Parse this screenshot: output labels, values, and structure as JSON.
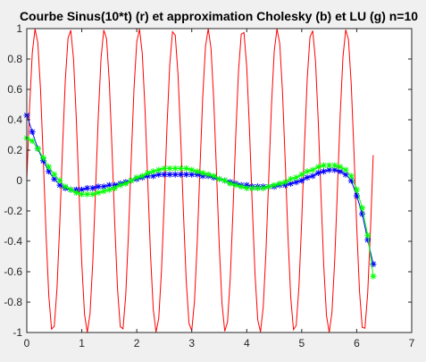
{
  "chart_data": {
    "type": "line",
    "title": "Courbe Sinus(10*t) (r) et approximation Cholesky (b) et LU (g) n=10",
    "xlabel": "",
    "ylabel": "",
    "xlim": [
      0,
      7
    ],
    "ylim": [
      -1,
      1
    ],
    "xticks": [
      0,
      1,
      2,
      3,
      4,
      5,
      6,
      7
    ],
    "yticks": [
      -1,
      -0.8,
      -0.6,
      -0.4,
      -0.2,
      0,
      0.2,
      0.4,
      0.6,
      0.8,
      1
    ],
    "xtick_labels": [
      "0",
      "1",
      "2",
      "3",
      "4",
      "5",
      "6",
      "7"
    ],
    "ytick_labels": [
      "-1",
      "-0.8",
      "-0.6",
      "-0.4",
      "-0.2",
      "0",
      "0.2",
      "0.4",
      "0.6",
      "0.8",
      "1"
    ],
    "grid": false,
    "series": [
      {
        "color": "#ff0000",
        "marker": "none",
        "function": "sin(10*t)",
        "x_range": [
          0,
          6.3
        ]
      },
      {
        "color": "#0000ff",
        "marker": "*",
        "x": [
          0.0,
          0.1,
          0.2,
          0.3,
          0.4,
          0.5,
          0.6,
          0.7,
          0.8,
          0.9,
          1.0,
          1.1,
          1.2,
          1.3,
          1.4,
          1.5,
          1.6,
          1.7,
          1.8,
          1.9,
          2.0,
          2.1,
          2.2,
          2.3,
          2.4,
          2.5,
          2.6,
          2.7,
          2.8,
          2.9,
          3.0,
          3.1,
          3.2,
          3.3,
          3.4,
          3.5,
          3.6,
          3.7,
          3.8,
          3.9,
          4.0,
          4.1,
          4.2,
          4.3,
          4.4,
          4.5,
          4.6,
          4.7,
          4.8,
          4.9,
          5.0,
          5.1,
          5.2,
          5.3,
          5.4,
          5.5,
          5.6,
          5.7,
          5.8,
          5.9,
          6.0,
          6.1,
          6.2,
          6.3
        ],
        "y": [
          0.43,
          0.32,
          0.21,
          0.13,
          0.06,
          0.01,
          -0.03,
          -0.05,
          -0.06,
          -0.06,
          -0.06,
          -0.05,
          -0.05,
          -0.04,
          -0.04,
          -0.03,
          -0.03,
          -0.02,
          -0.01,
          0.0,
          0.01,
          0.02,
          0.03,
          0.03,
          0.04,
          0.04,
          0.04,
          0.04,
          0.04,
          0.04,
          0.04,
          0.04,
          0.03,
          0.03,
          0.02,
          0.01,
          0.0,
          -0.01,
          -0.02,
          -0.03,
          -0.03,
          -0.04,
          -0.04,
          -0.04,
          -0.04,
          -0.04,
          -0.03,
          -0.03,
          -0.02,
          -0.01,
          0.0,
          0.02,
          0.03,
          0.05,
          0.06,
          0.07,
          0.07,
          0.06,
          0.04,
          0.0,
          -0.1,
          -0.22,
          -0.39,
          -0.55
        ]
      },
      {
        "color": "#00ff00",
        "marker": "*",
        "x": [
          0.0,
          0.1,
          0.2,
          0.3,
          0.4,
          0.5,
          0.6,
          0.7,
          0.8,
          0.9,
          1.0,
          1.1,
          1.2,
          1.3,
          1.4,
          1.5,
          1.6,
          1.7,
          1.8,
          1.9,
          2.0,
          2.1,
          2.2,
          2.3,
          2.4,
          2.5,
          2.6,
          2.7,
          2.8,
          2.9,
          3.0,
          3.1,
          3.2,
          3.3,
          3.4,
          3.5,
          3.6,
          3.7,
          3.8,
          3.9,
          4.0,
          4.1,
          4.2,
          4.3,
          4.4,
          4.5,
          4.6,
          4.7,
          4.8,
          4.9,
          5.0,
          5.1,
          5.2,
          5.3,
          5.4,
          5.5,
          5.6,
          5.7,
          5.8,
          5.9,
          6.0,
          6.1,
          6.2,
          6.3
        ],
        "y": [
          0.28,
          0.26,
          0.21,
          0.15,
          0.09,
          0.04,
          0.0,
          -0.04,
          -0.06,
          -0.08,
          -0.09,
          -0.09,
          -0.09,
          -0.08,
          -0.07,
          -0.06,
          -0.05,
          -0.03,
          -0.02,
          0.0,
          0.02,
          0.03,
          0.05,
          0.06,
          0.07,
          0.08,
          0.08,
          0.08,
          0.08,
          0.08,
          0.07,
          0.06,
          0.05,
          0.04,
          0.03,
          0.01,
          -0.0,
          -0.02,
          -0.03,
          -0.04,
          -0.05,
          -0.05,
          -0.05,
          -0.05,
          -0.04,
          -0.03,
          -0.02,
          -0.01,
          0.01,
          0.02,
          0.04,
          0.06,
          0.07,
          0.09,
          0.1,
          0.1,
          0.1,
          0.09,
          0.07,
          0.03,
          -0.06,
          -0.18,
          -0.36,
          -0.63
        ]
      }
    ]
  }
}
